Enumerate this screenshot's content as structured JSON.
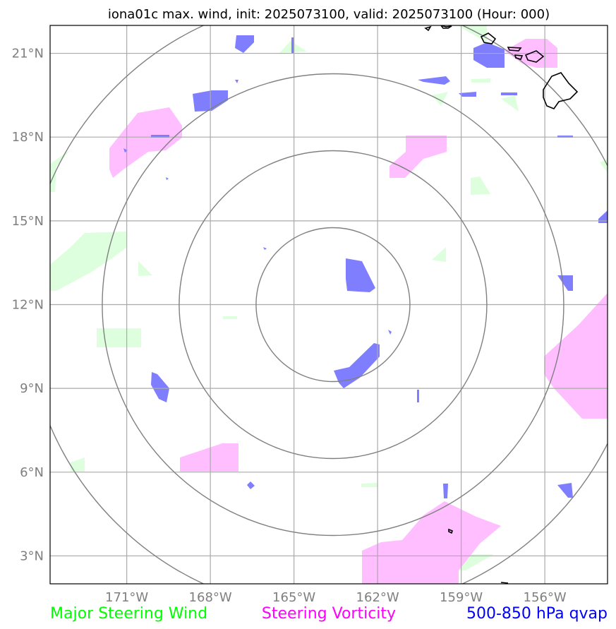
{
  "title": "iona01c max. wind, init: 2025073100, valid: 2025073100 (Hour: 000)",
  "map": {
    "lon_range": [
      -173.75,
      -153.75
    ],
    "lat_range": [
      2.0,
      22.0
    ],
    "center": {
      "lon": -163.6,
      "lat": 12.0
    },
    "range_ring_count": 4,
    "lon_ticks": [
      {
        "lon": -171,
        "label": "171°W"
      },
      {
        "lon": -168,
        "label": "168°W"
      },
      {
        "lon": -165,
        "label": "165°W"
      },
      {
        "lon": -162,
        "label": "162°W"
      },
      {
        "lon": -159,
        "label": "159°W"
      },
      {
        "lon": -156,
        "label": "156°W"
      }
    ],
    "lat_ticks": [
      {
        "lat": 21,
        "label": "21°N"
      },
      {
        "lat": 18,
        "label": "18°N"
      },
      {
        "lat": 15,
        "label": "15°N"
      },
      {
        "lat": 12,
        "label": "12°N"
      },
      {
        "lat": 9,
        "label": "9°N"
      },
      {
        "lat": 6,
        "label": "6°N"
      },
      {
        "lat": 3,
        "label": "3°N"
      }
    ],
    "grid": true
  },
  "legend": {
    "wind": {
      "label": "Major Steering Wind",
      "color": "#00ff00"
    },
    "vorticity": {
      "label": "Steering Vorticity",
      "color": "#ff00ff"
    },
    "qvap": {
      "label": "500-850 hPa qvap",
      "color": "#0000ff"
    }
  },
  "colors": {
    "wind_fill": "#ddffdd",
    "vorticity_fill": "#ffbbff",
    "qvap_fill": "#7777ff",
    "grid": "#aaaaaa",
    "ring": "#808080",
    "coast": "#000000"
  }
}
